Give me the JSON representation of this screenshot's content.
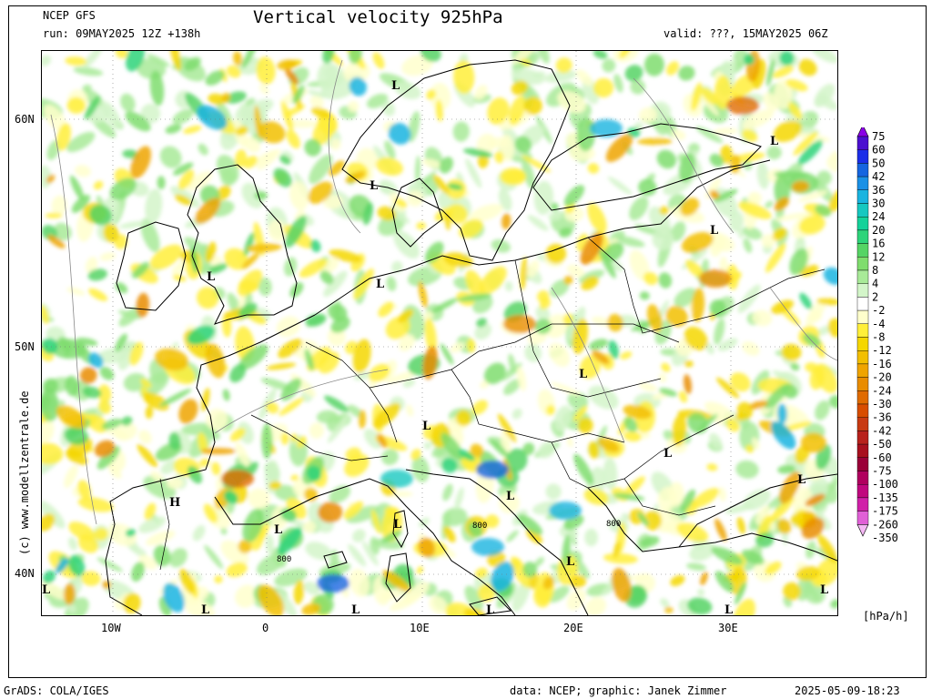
{
  "header": {
    "model": "NCEP GFS",
    "run": "run: 09MAY2025 12Z +138h",
    "title": "Vertical velocity 925hPa",
    "valid": "valid: ???, 15MAY2025 06Z"
  },
  "map": {
    "lat_labels": [
      "60N",
      "50N",
      "40N"
    ],
    "lon_labels": [
      "10W",
      "0",
      "10E",
      "20E",
      "30E"
    ],
    "pressure_labels": [
      "L",
      "L",
      "L",
      "L",
      "L",
      "L",
      "L",
      "L",
      "L",
      "L",
      "L",
      "L",
      "L",
      "L",
      "L",
      "L",
      "L",
      "L",
      "L",
      "L",
      "H"
    ],
    "contour_labels": [
      "800",
      "800",
      "800"
    ]
  },
  "legend": {
    "levels": [
      "75",
      "60",
      "50",
      "42",
      "36",
      "30",
      "24",
      "20",
      "16",
      "12",
      "8",
      "4",
      "2",
      "-2",
      "-4",
      "-8",
      "-12",
      "-16",
      "-20",
      "-24",
      "-30",
      "-36",
      "-42",
      "-50",
      "-60",
      "-75",
      "-100",
      "-135",
      "-175",
      "-260",
      "-350"
    ],
    "colors": [
      "#8a00e6",
      "#4b10d0",
      "#1b2ee8",
      "#1565e0",
      "#1a90e6",
      "#19b4e0",
      "#16c8c0",
      "#14d29a",
      "#2ed47a",
      "#55d465",
      "#7fdd6e",
      "#a8ea98",
      "#d3f5c9",
      "#ffffff",
      "#ffffcc",
      "#ffef3a",
      "#f5d700",
      "#f2bf00",
      "#efa400",
      "#e98c00",
      "#e06b00",
      "#d84d00",
      "#c83a12",
      "#b8221c",
      "#a8101e",
      "#9a0038",
      "#b0005e",
      "#c0087e",
      "#d020a8",
      "#e060d6",
      "#f4b8f4"
    ],
    "unit": "[hPa/h]"
  },
  "footer": {
    "left": "GrADS: COLA/IGES",
    "middle": "data: NCEP; graphic: Janek Zimmer",
    "right": "2025-05-09-18:23"
  },
  "copyright": "(c) www.modellzentrale.de"
}
